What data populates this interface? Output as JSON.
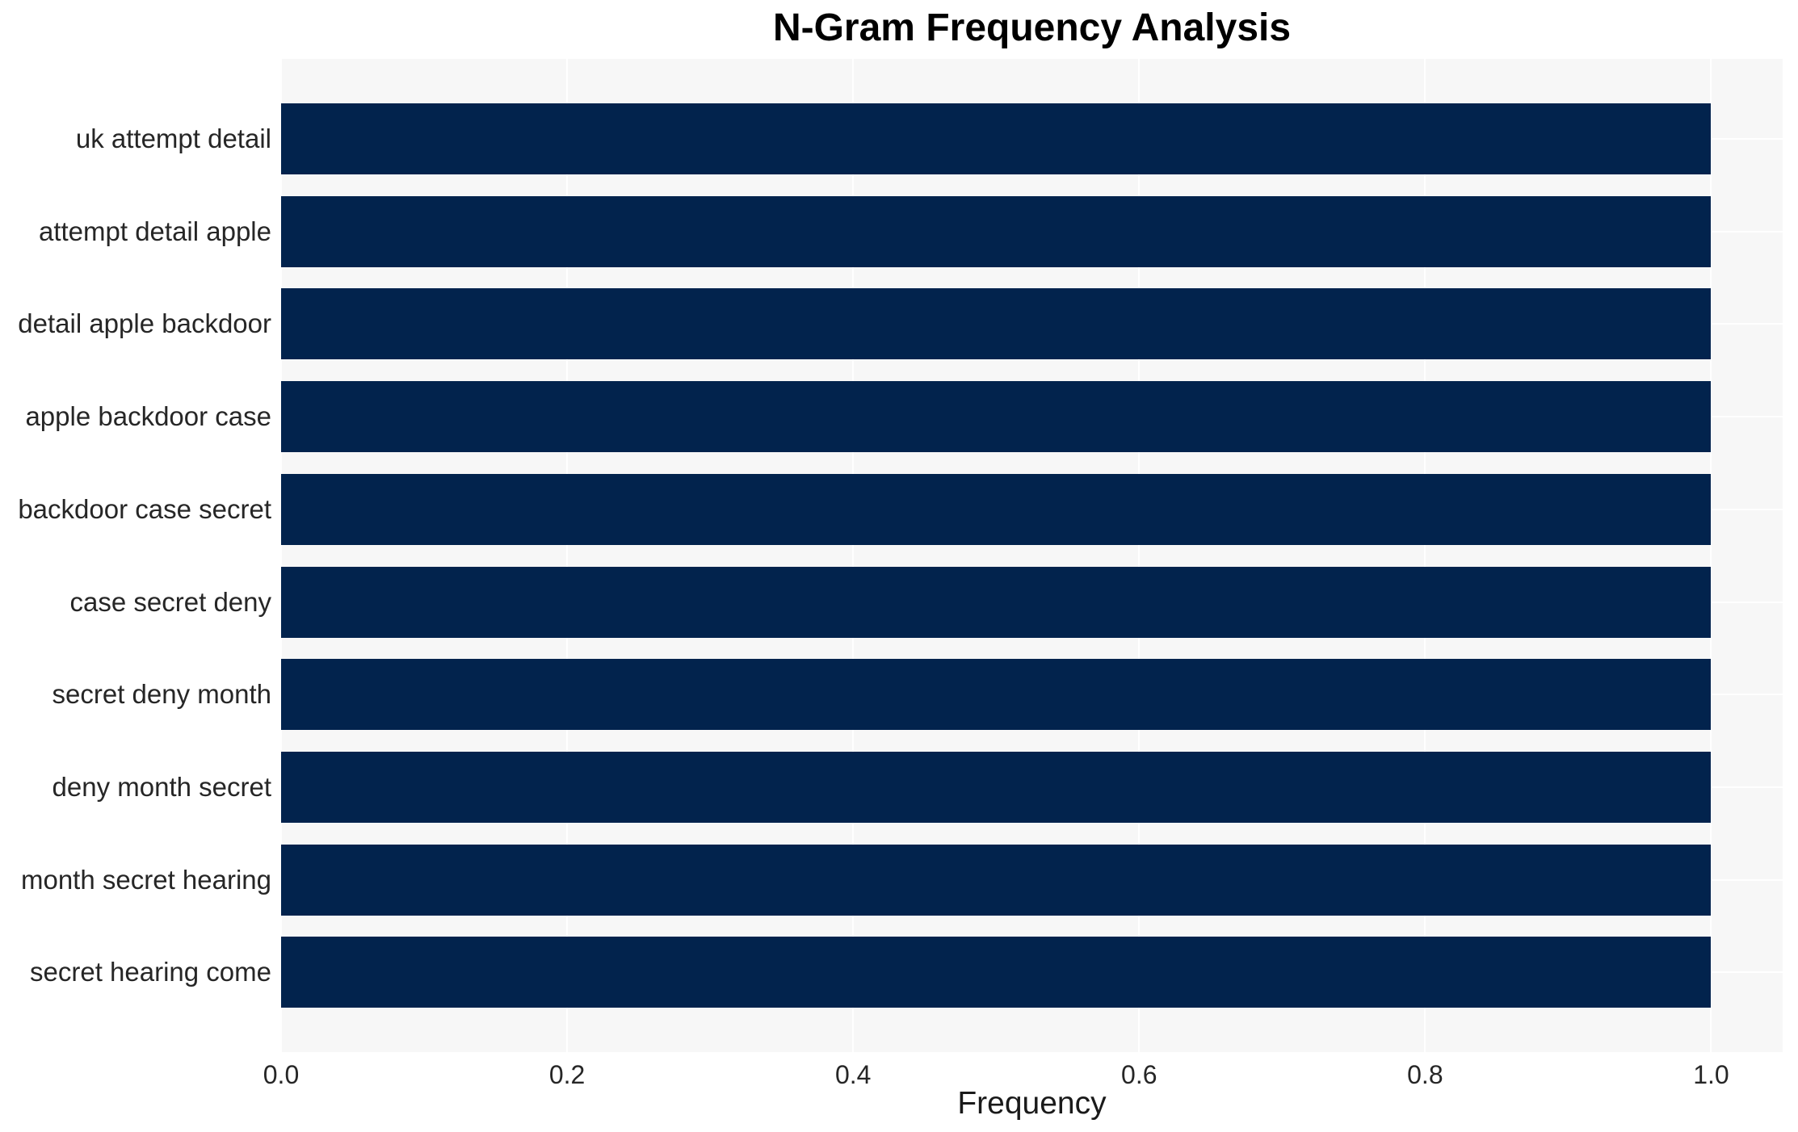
{
  "chart_data": {
    "type": "bar",
    "orientation": "horizontal",
    "title": "N-Gram Frequency Analysis",
    "xlabel": "Frequency",
    "ylabel": "",
    "categories": [
      "uk attempt detail",
      "attempt detail apple",
      "detail apple backdoor",
      "apple backdoor case",
      "backdoor case secret",
      "case secret deny",
      "secret deny month",
      "deny month secret",
      "month secret hearing",
      "secret hearing come"
    ],
    "values": [
      1.0,
      1.0,
      1.0,
      1.0,
      1.0,
      1.0,
      1.0,
      1.0,
      1.0,
      1.0
    ],
    "xlim": [
      0,
      1.05
    ],
    "xticks": [
      {
        "value": 0.0,
        "label": "0.0"
      },
      {
        "value": 0.2,
        "label": "0.2"
      },
      {
        "value": 0.4,
        "label": "0.4"
      },
      {
        "value": 0.6,
        "label": "0.6"
      },
      {
        "value": 0.8,
        "label": "0.8"
      },
      {
        "value": 1.0,
        "label": "1.0"
      }
    ],
    "grid": true,
    "legend": null,
    "colors": {
      "bar": "#02234d",
      "plot_background": "#f7f7f7",
      "gridline": "#ffffff",
      "title": "#000000",
      "tick_label": "#262626",
      "axis_label": "#1a1a1a"
    }
  }
}
